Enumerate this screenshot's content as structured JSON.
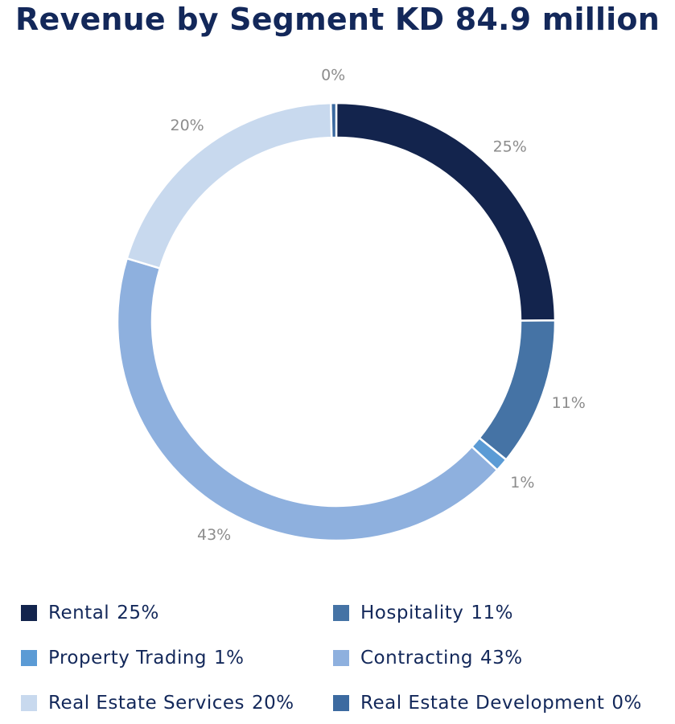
{
  "chart_data": {
    "type": "pie",
    "variant": "donut",
    "title": "Revenue by Segment KD 84.9 million",
    "slices": [
      {
        "label": "Rental",
        "value": 25,
        "pct_label": "25%",
        "color": "#13244d"
      },
      {
        "label": "Hospitality",
        "value": 11,
        "pct_label": "11%",
        "color": "#4573a5"
      },
      {
        "label": "Property Trading",
        "value": 1,
        "pct_label": "1%",
        "color": "#5b9bd5"
      },
      {
        "label": "Contracting",
        "value": 43,
        "pct_label": "43%",
        "color": "#8eb0de"
      },
      {
        "label": "Real Estate Services",
        "value": 20,
        "pct_label": "20%",
        "color": "#c8d9ee"
      },
      {
        "label": "Real Estate Development",
        "value": 0.4,
        "pct_label": "0%",
        "color": "#3c6aa0"
      }
    ],
    "data_label_color": "#8c8c8c",
    "legend_position": "bottom"
  }
}
